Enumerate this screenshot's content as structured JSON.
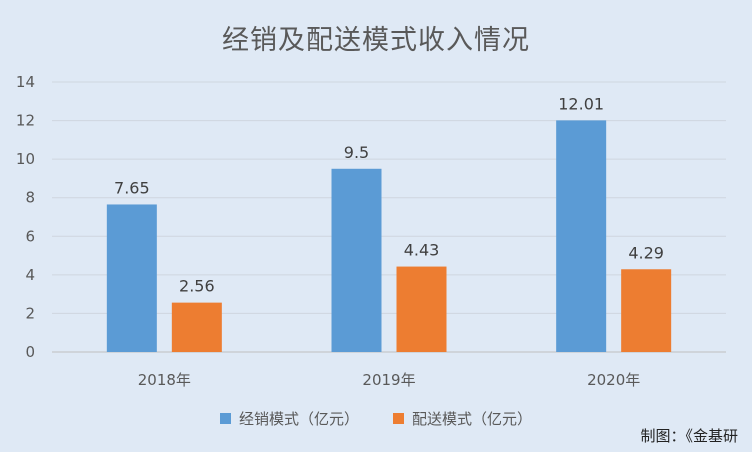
{
  "chart_data": {
    "type": "bar",
    "title": "经销及配送模式收入情况",
    "categories": [
      "2018年",
      "2019年",
      "2020年"
    ],
    "series": [
      {
        "name": "经销模式（亿元）",
        "values": [
          7.65,
          9.5,
          12.01
        ],
        "color": "#5b9bd5"
      },
      {
        "name": "配送模式（亿元）",
        "values": [
          2.56,
          4.43,
          4.29
        ],
        "color": "#ed7d31"
      }
    ],
    "ylim": [
      0,
      14
    ],
    "yticks": [
      0,
      2,
      4,
      6,
      8,
      10,
      12,
      14
    ],
    "grid": true,
    "legend": "bottom",
    "data_labels": true
  },
  "credit": "制图：《金基研"
}
